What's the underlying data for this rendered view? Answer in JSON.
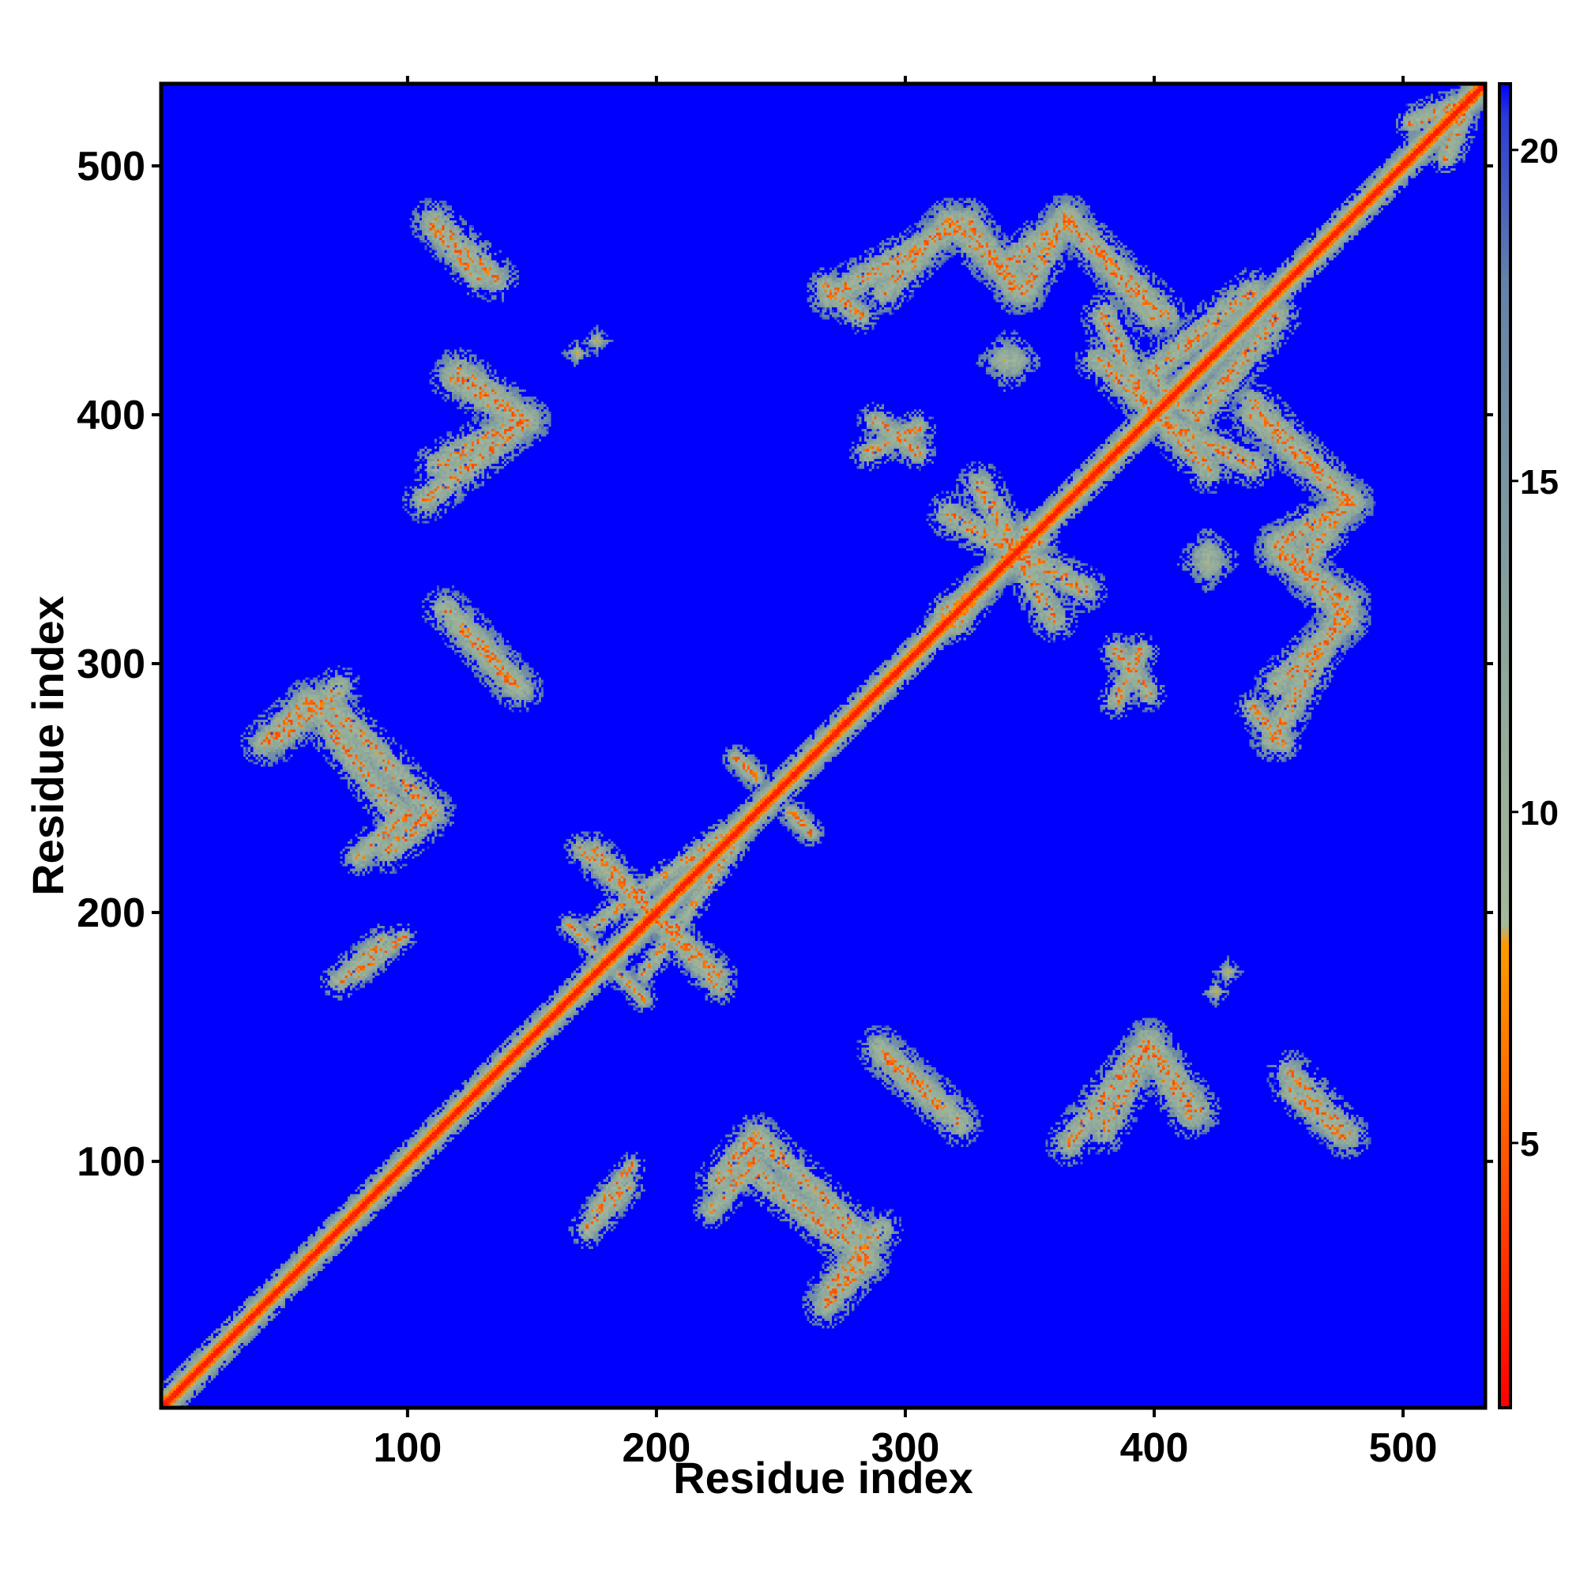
{
  "chart_data": {
    "type": "heatmap",
    "title": "",
    "xlabel": "Residue index",
    "ylabel": "Residue index",
    "xlim": [
      1,
      533
    ],
    "ylim": [
      1,
      533
    ],
    "x_ticks": [
      100,
      200,
      300,
      400,
      500
    ],
    "y_ticks": [
      100,
      200,
      300,
      400,
      500
    ],
    "grid": false,
    "background_value": 21,
    "colorbar": {
      "ticks": [
        5,
        10,
        15,
        20
      ],
      "range": [
        1,
        21
      ],
      "stops": [
        {
          "value": 1,
          "color": "#ff0000"
        },
        {
          "value": 4,
          "color": "#ff4400"
        },
        {
          "value": 8,
          "color": "#ff9a00"
        },
        {
          "value": 8.3,
          "color": "#a4b89a"
        },
        {
          "value": 12,
          "color": "#8fa89a"
        },
        {
          "value": 18,
          "color": "#6482a8"
        },
        {
          "value": 20.5,
          "color": "#2a3cd8"
        },
        {
          "value": 21,
          "color": "#0000ff"
        }
      ]
    },
    "diagonal": {
      "width_residues": 9,
      "core_value": 2
    },
    "contact_bands": [
      {
        "from": [
          110,
          478
        ],
        "to": [
          135,
          455
        ],
        "width": 5
      },
      {
        "from": [
          120,
          418
        ],
        "to": [
          148,
          398
        ],
        "width": 5
      },
      {
        "from": [
          107,
          366
        ],
        "to": [
          148,
          398
        ],
        "width": 5
      },
      {
        "from": [
          115,
          322
        ],
        "to": [
          142,
          292
        ],
        "width": 5
      },
      {
        "from": [
          42,
          268
        ],
        "to": [
          60,
          285
        ],
        "width": 5
      },
      {
        "from": [
          60,
          285
        ],
        "to": [
          95,
          240
        ],
        "width": 5
      },
      {
        "from": [
          80,
          222
        ],
        "to": [
          100,
          240
        ],
        "width": 4
      },
      {
        "from": [
          72,
          172
        ],
        "to": [
          90,
          188
        ],
        "width": 4
      },
      {
        "from": [
          170,
          225
        ],
        "to": [
          225,
          175
        ],
        "width": 4
      },
      {
        "from": [
          175,
          195
        ],
        "to": [
          232,
          235
        ],
        "width": 3
      },
      {
        "from": [
          185,
          175
        ],
        "to": [
          195,
          165
        ],
        "width": 3
      },
      {
        "from": [
          232,
          262
        ],
        "to": [
          240,
          254
        ],
        "width": 3
      },
      {
        "from": [
          255,
          240
        ],
        "to": [
          262,
          232
        ],
        "width": 3
      },
      {
        "from": [
          175,
          80
        ],
        "to": [
          190,
          98
        ],
        "width": 3
      },
      {
        "from": [
          225,
          92
        ],
        "to": [
          240,
          110
        ],
        "width": 5
      },
      {
        "from": [
          242,
          108
        ],
        "to": [
          282,
          70
        ],
        "width": 5
      },
      {
        "from": [
          270,
          48
        ],
        "to": [
          290,
          72
        ],
        "width": 5
      },
      {
        "from": [
          290,
          145
        ],
        "to": [
          315,
          122
        ],
        "width": 5
      },
      {
        "from": [
          380,
          112
        ],
        "to": [
          398,
          145
        ],
        "width": 5
      },
      {
        "from": [
          398,
          145
        ],
        "to": [
          415,
          118
        ],
        "width": 5
      },
      {
        "from": [
          455,
          128
        ],
        "to": [
          475,
          110
        ],
        "width": 4
      },
      {
        "from": [
          268,
          452
        ],
        "to": [
          282,
          440
        ],
        "width": 4
      },
      {
        "from": [
          292,
          450
        ],
        "to": [
          318,
          478
        ],
        "width": 5
      },
      {
        "from": [
          318,
          478
        ],
        "to": [
          348,
          450
        ],
        "width": 5
      },
      {
        "from": [
          348,
          450
        ],
        "to": [
          365,
          480
        ],
        "width": 5
      },
      {
        "from": [
          365,
          480
        ],
        "to": [
          400,
          440
        ],
        "width": 5
      },
      {
        "from": [
          378,
          422
        ],
        "to": [
          408,
          395
        ],
        "width": 5
      },
      {
        "from": [
          288,
          398
        ],
        "to": [
          305,
          385
        ],
        "width": 4
      },
      {
        "from": [
          400,
          418
        ],
        "to": [
          440,
          450
        ],
        "width": 5
      },
      {
        "from": [
          408,
          395
        ],
        "to": [
          440,
          380
        ],
        "width": 5
      },
      {
        "from": [
          440,
          405
        ],
        "to": [
          478,
          365
        ],
        "width": 5
      },
      {
        "from": [
          478,
          365
        ],
        "to": [
          460,
          340
        ],
        "width": 5
      },
      {
        "from": [
          450,
          345
        ],
        "to": [
          478,
          325
        ],
        "width": 5
      },
      {
        "from": [
          448,
          270
        ],
        "to": [
          478,
          325
        ],
        "width": 5
      },
      {
        "from": [
          330,
          372
        ],
        "to": [
          360,
          318
        ],
        "width": 5
      },
      {
        "from": [
          320,
          315
        ],
        "to": [
          350,
          355
        ],
        "width": 4
      },
      {
        "from": [
          385,
          285
        ],
        "to": [
          395,
          305
        ],
        "width": 4
      },
      {
        "from": [
          410,
          405
        ],
        "to": [
          418,
          398
        ],
        "width": 3
      },
      {
        "from": [
          504,
          518
        ],
        "to": [
          530,
          528
        ],
        "width": 4
      }
    ],
    "contact_spots": [
      {
        "x": 340,
        "y": 422,
        "r": 6
      },
      {
        "x": 422,
        "y": 344,
        "r": 6
      },
      {
        "x": 176,
        "y": 430,
        "r": 3
      },
      {
        "x": 425,
        "y": 168,
        "r": 3
      }
    ]
  }
}
